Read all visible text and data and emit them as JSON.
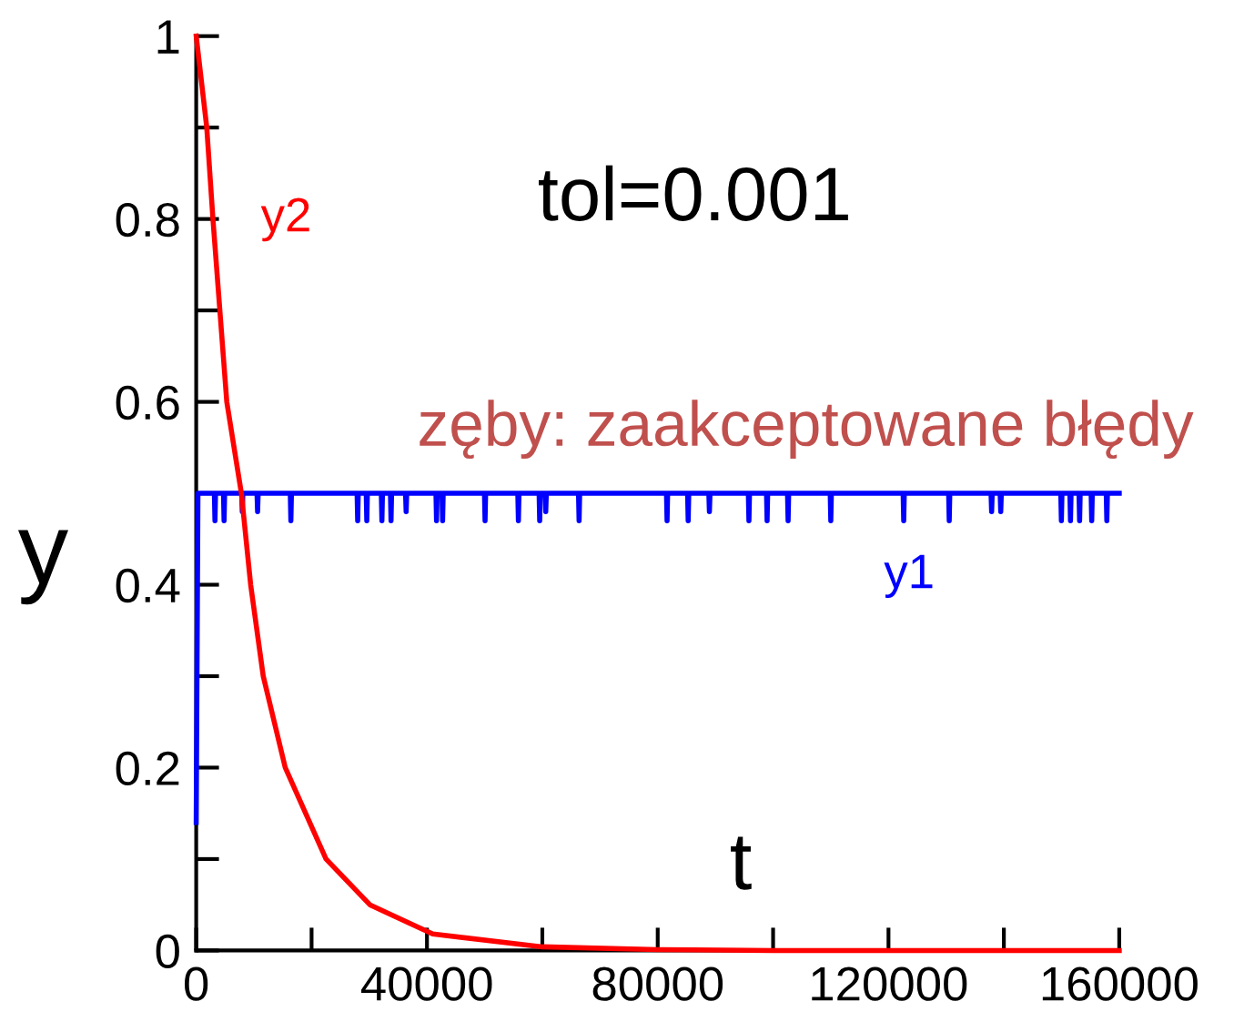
{
  "chart_data": {
    "type": "line",
    "xlabel": "t",
    "ylabel": "y",
    "xlim": [
      0,
      160000
    ],
    "ylim": [
      0,
      1
    ],
    "xticks": [
      0,
      {
        "value": 20000,
        "label": null
      },
      40000,
      {
        "value": 60000,
        "label": null
      },
      80000,
      {
        "value": 100000,
        "label": null
      },
      120000,
      {
        "value": 140000,
        "label": null
      },
      160000
    ],
    "yticks": [
      0,
      {
        "value": 0.1,
        "label": null
      },
      0.2,
      {
        "value": 0.3,
        "label": null
      },
      0.4,
      {
        "value": 0.5,
        "label": null
      },
      0.6,
      {
        "value": 0.7,
        "label": null
      },
      0.8,
      {
        "value": 0.9,
        "label": null
      },
      1
    ],
    "grid": false,
    "legend": false,
    "marker": "none",
    "line_style": "solid",
    "annotations": [
      "tol=0.001",
      "zęby: zaakceptowane błędy"
    ],
    "series": [
      {
        "name": "y1",
        "color": "#0000ff",
        "x": [
          0,
          300,
          3150,
          3250,
          3350,
          4730,
          4830,
          4930,
          7890,
          7990,
          8090,
          10540,
          10640,
          10740,
          16310,
          16410,
          16510,
          27890,
          27990,
          28090,
          29470,
          29570,
          29670,
          32090,
          32190,
          32290,
          33670,
          33770,
          33870,
          36290,
          36390,
          36490,
          41560,
          41660,
          41760,
          42610,
          42710,
          42810,
          49970,
          50070,
          50170,
          55750,
          55850,
          55950,
          59440,
          59540,
          59640,
          60490,
          60590,
          60690,
          66270,
          66370,
          66470,
          81520,
          81620,
          81720,
          85180,
          85280,
          85380,
          88860,
          88960,
          89060,
          95710,
          95810,
          95910,
          98860,
          98960,
          99060,
          102500,
          102600,
          102700,
          109900,
          110000,
          110100,
          122540,
          122640,
          122740,
          130430,
          130530,
          130630,
          137780,
          137880,
          137980,
          139360,
          139460,
          139560,
          149870,
          149970,
          150070,
          151450,
          151550,
          151650,
          153030,
          153130,
          153230,
          155130,
          155230,
          155330,
          157750,
          157850,
          157950,
          160000
        ],
        "values": [
          0.14,
          0.5,
          0.5,
          0.47,
          0.5,
          0.5,
          0.47,
          0.5,
          0.5,
          0.48,
          0.5,
          0.5,
          0.48,
          0.5,
          0.5,
          0.47,
          0.5,
          0.5,
          0.47,
          0.5,
          0.5,
          0.47,
          0.5,
          0.5,
          0.47,
          0.5,
          0.5,
          0.47,
          0.5,
          0.5,
          0.48,
          0.5,
          0.5,
          0.47,
          0.5,
          0.5,
          0.47,
          0.5,
          0.5,
          0.47,
          0.5,
          0.5,
          0.47,
          0.5,
          0.5,
          0.47,
          0.5,
          0.5,
          0.48,
          0.5,
          0.5,
          0.47,
          0.5,
          0.5,
          0.47,
          0.5,
          0.5,
          0.47,
          0.5,
          0.5,
          0.48,
          0.5,
          0.5,
          0.47,
          0.5,
          0.5,
          0.47,
          0.5,
          0.5,
          0.47,
          0.5,
          0.5,
          0.47,
          0.5,
          0.5,
          0.47,
          0.5,
          0.5,
          0.47,
          0.5,
          0.5,
          0.48,
          0.5,
          0.5,
          0.48,
          0.5,
          0.5,
          0.47,
          0.5,
          0.5,
          0.47,
          0.5,
          0.5,
          0.47,
          0.5,
          0.5,
          0.47,
          0.5,
          0.5,
          0.47,
          0.5,
          0.5
        ]
      },
      {
        "name": "y2",
        "color": "#ff0000",
        "x": [
          0,
          1830,
          2900,
          5300,
          7830,
          9440,
          11620,
          15430,
          22500,
          30100,
          41000,
          60000,
          80000,
          100000,
          160000
        ],
        "values": [
          1,
          0.9,
          0.8,
          0.6,
          0.5,
          0.4,
          0.3,
          0.2,
          0.1,
          0.05,
          0.018,
          0.004,
          0.001,
          0,
          0
        ]
      }
    ]
  }
}
